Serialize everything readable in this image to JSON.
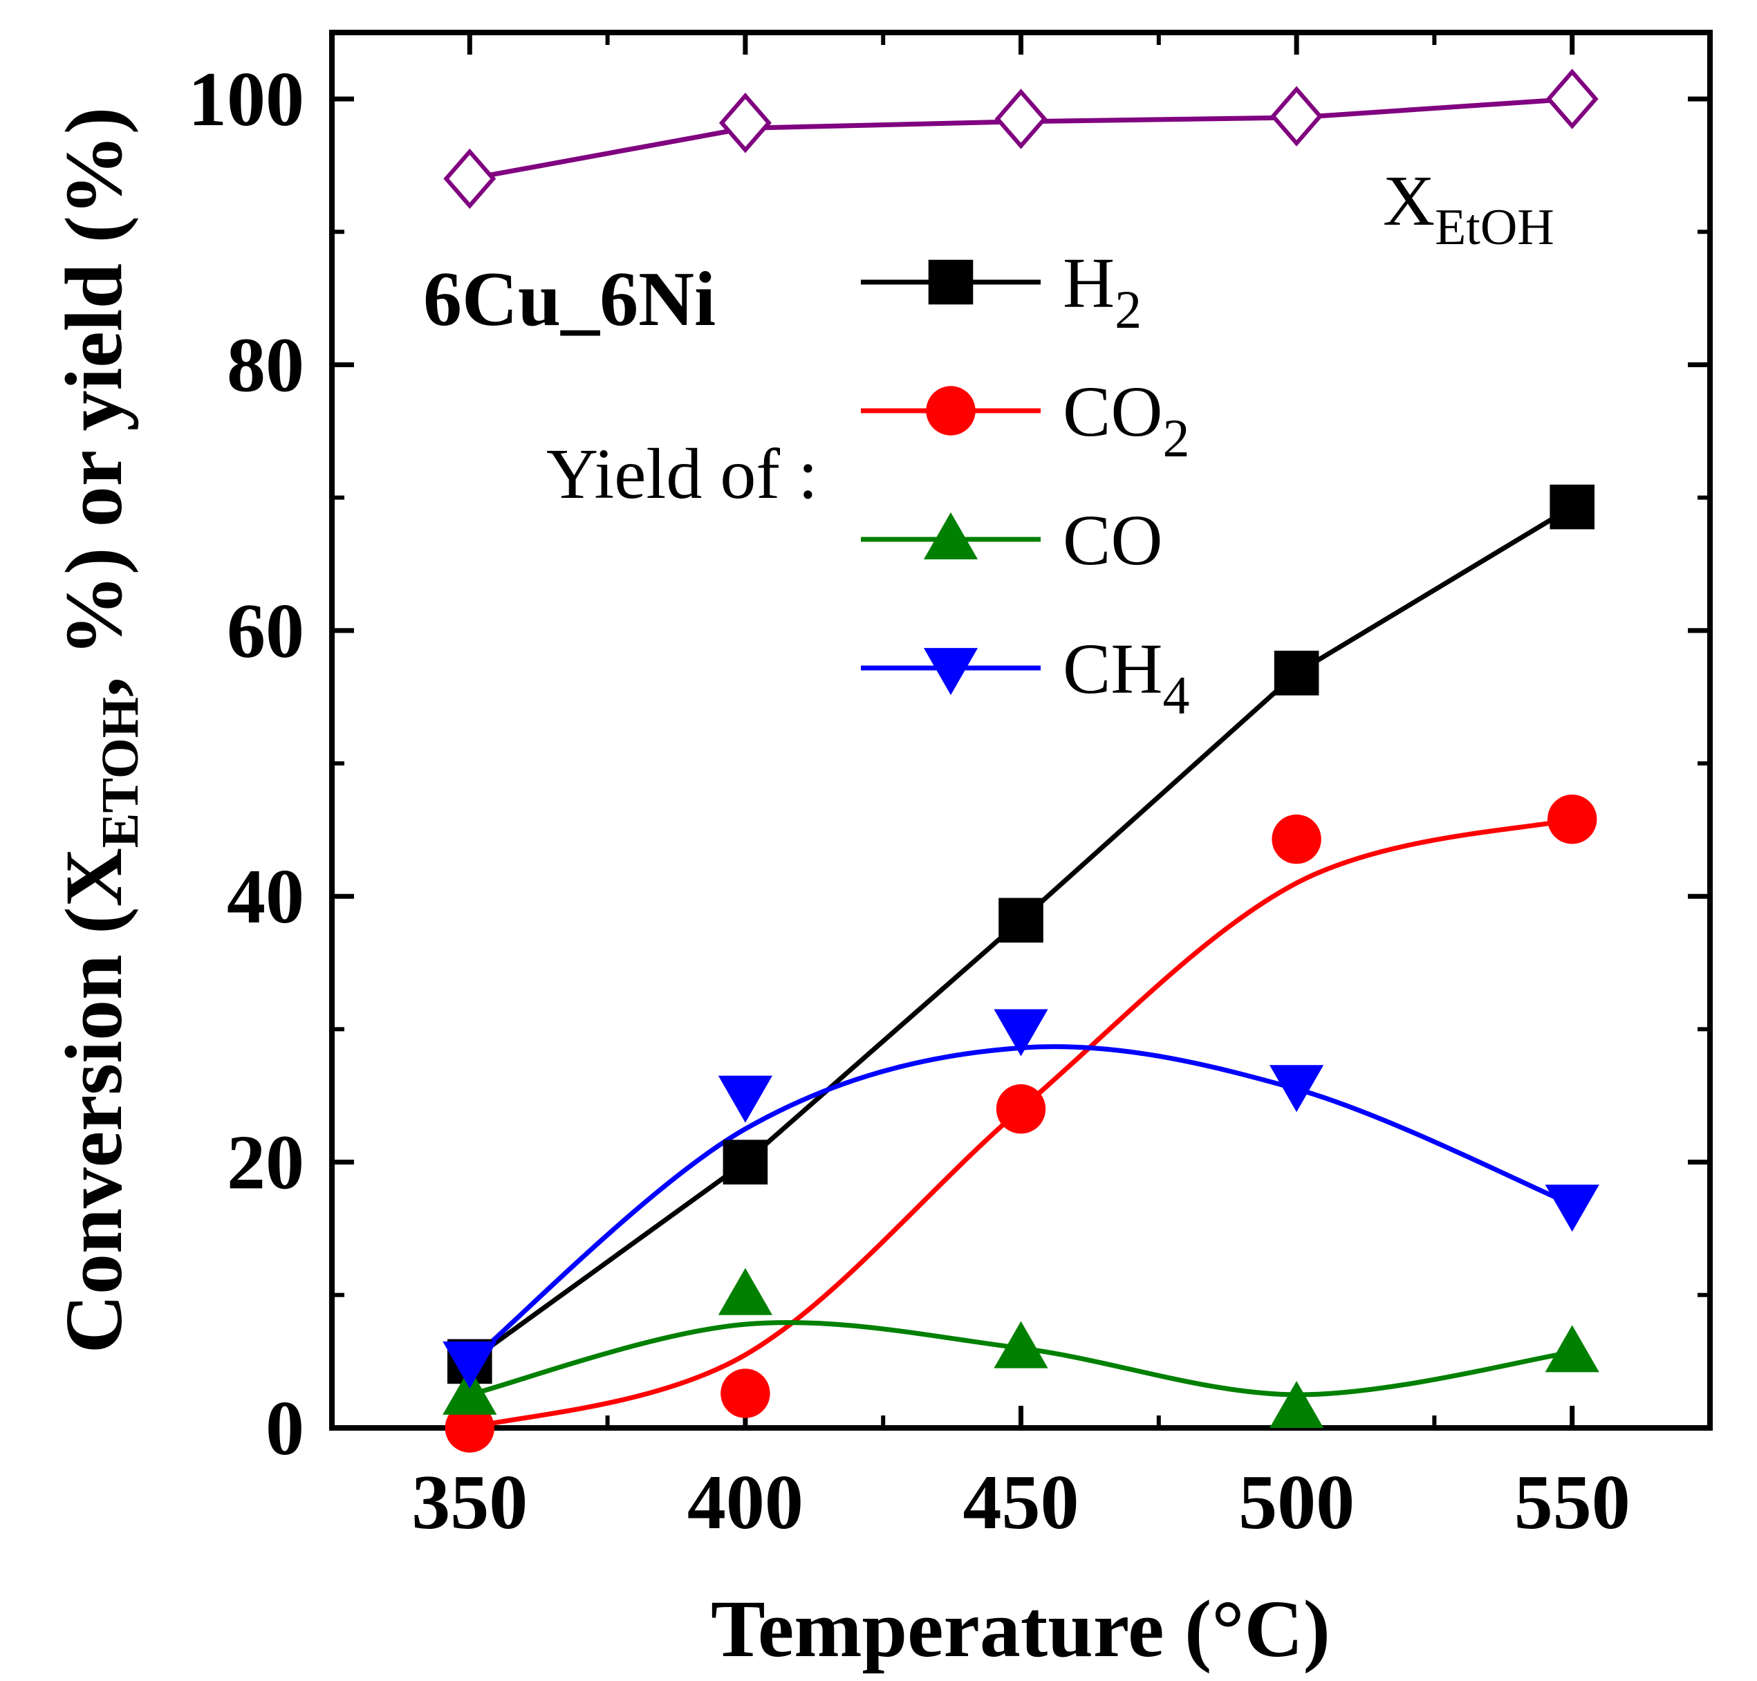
{
  "chart_data": {
    "type": "line",
    "title": "",
    "sample_label": "6Cu_6Ni",
    "xlabel": "Temperature (°C)",
    "ylabel": {
      "prefix": "Conversion (X",
      "sub": "ETOH",
      "suffix": ", %) or yield (%)"
    },
    "xlim": [
      325,
      575
    ],
    "ylim": [
      0,
      105
    ],
    "x_ticks": [
      350,
      400,
      450,
      500,
      550
    ],
    "x_tick_labels": [
      "350",
      "400",
      "450",
      "500",
      "550"
    ],
    "y_ticks": [
      0,
      20,
      40,
      60,
      80,
      100
    ],
    "y_tick_labels": [
      "0",
      "20",
      "40",
      "60",
      "80",
      "100"
    ],
    "x": [
      350,
      400,
      450,
      500,
      550
    ],
    "yield_label": "Yield of :",
    "conversion_label": {
      "main": "X",
      "sub": "EtOH"
    },
    "series": [
      {
        "name": "X_EtOH",
        "label_main": "X",
        "label_sub": "EtOH",
        "color": "#800080",
        "marker": "diamond-open",
        "values": [
          94.0,
          98.2,
          98.5,
          98.7,
          100.0
        ],
        "fit": [
          94.0,
          97.8,
          98.3,
          98.6,
          100.0
        ]
      },
      {
        "name": "H2",
        "label_main": "H",
        "label_sub": "2",
        "color": "#000000",
        "marker": "square",
        "values": [
          5.0,
          20.0,
          38.2,
          56.8,
          69.3
        ],
        "fit": [
          5.0,
          20.0,
          38.2,
          56.8,
          69.3
        ]
      },
      {
        "name": "CO2",
        "label_main": "CO",
        "label_sub": "2",
        "color": "#ff0000",
        "marker": "circle",
        "values": [
          0.0,
          2.6,
          24.0,
          44.3,
          45.8
        ],
        "fit": [
          0.0,
          5.5,
          24.0,
          41.0,
          45.8
        ]
      },
      {
        "name": "CO",
        "label_main": "CO",
        "label_sub": "",
        "color": "#008000",
        "marker": "triangle-up",
        "values": [
          2.5,
          10.0,
          6.0,
          1.5,
          5.7
        ],
        "fit": [
          2.5,
          7.8,
          6.0,
          2.5,
          5.7
        ]
      },
      {
        "name": "CH4",
        "label_main": "CH",
        "label_sub": "4",
        "color": "#0000ff",
        "marker": "triangle-down",
        "values": [
          5.0,
          25.0,
          30.0,
          25.8,
          16.8
        ],
        "fit": [
          5.0,
          22.5,
          28.6,
          25.5,
          16.8
        ]
      }
    ]
  }
}
